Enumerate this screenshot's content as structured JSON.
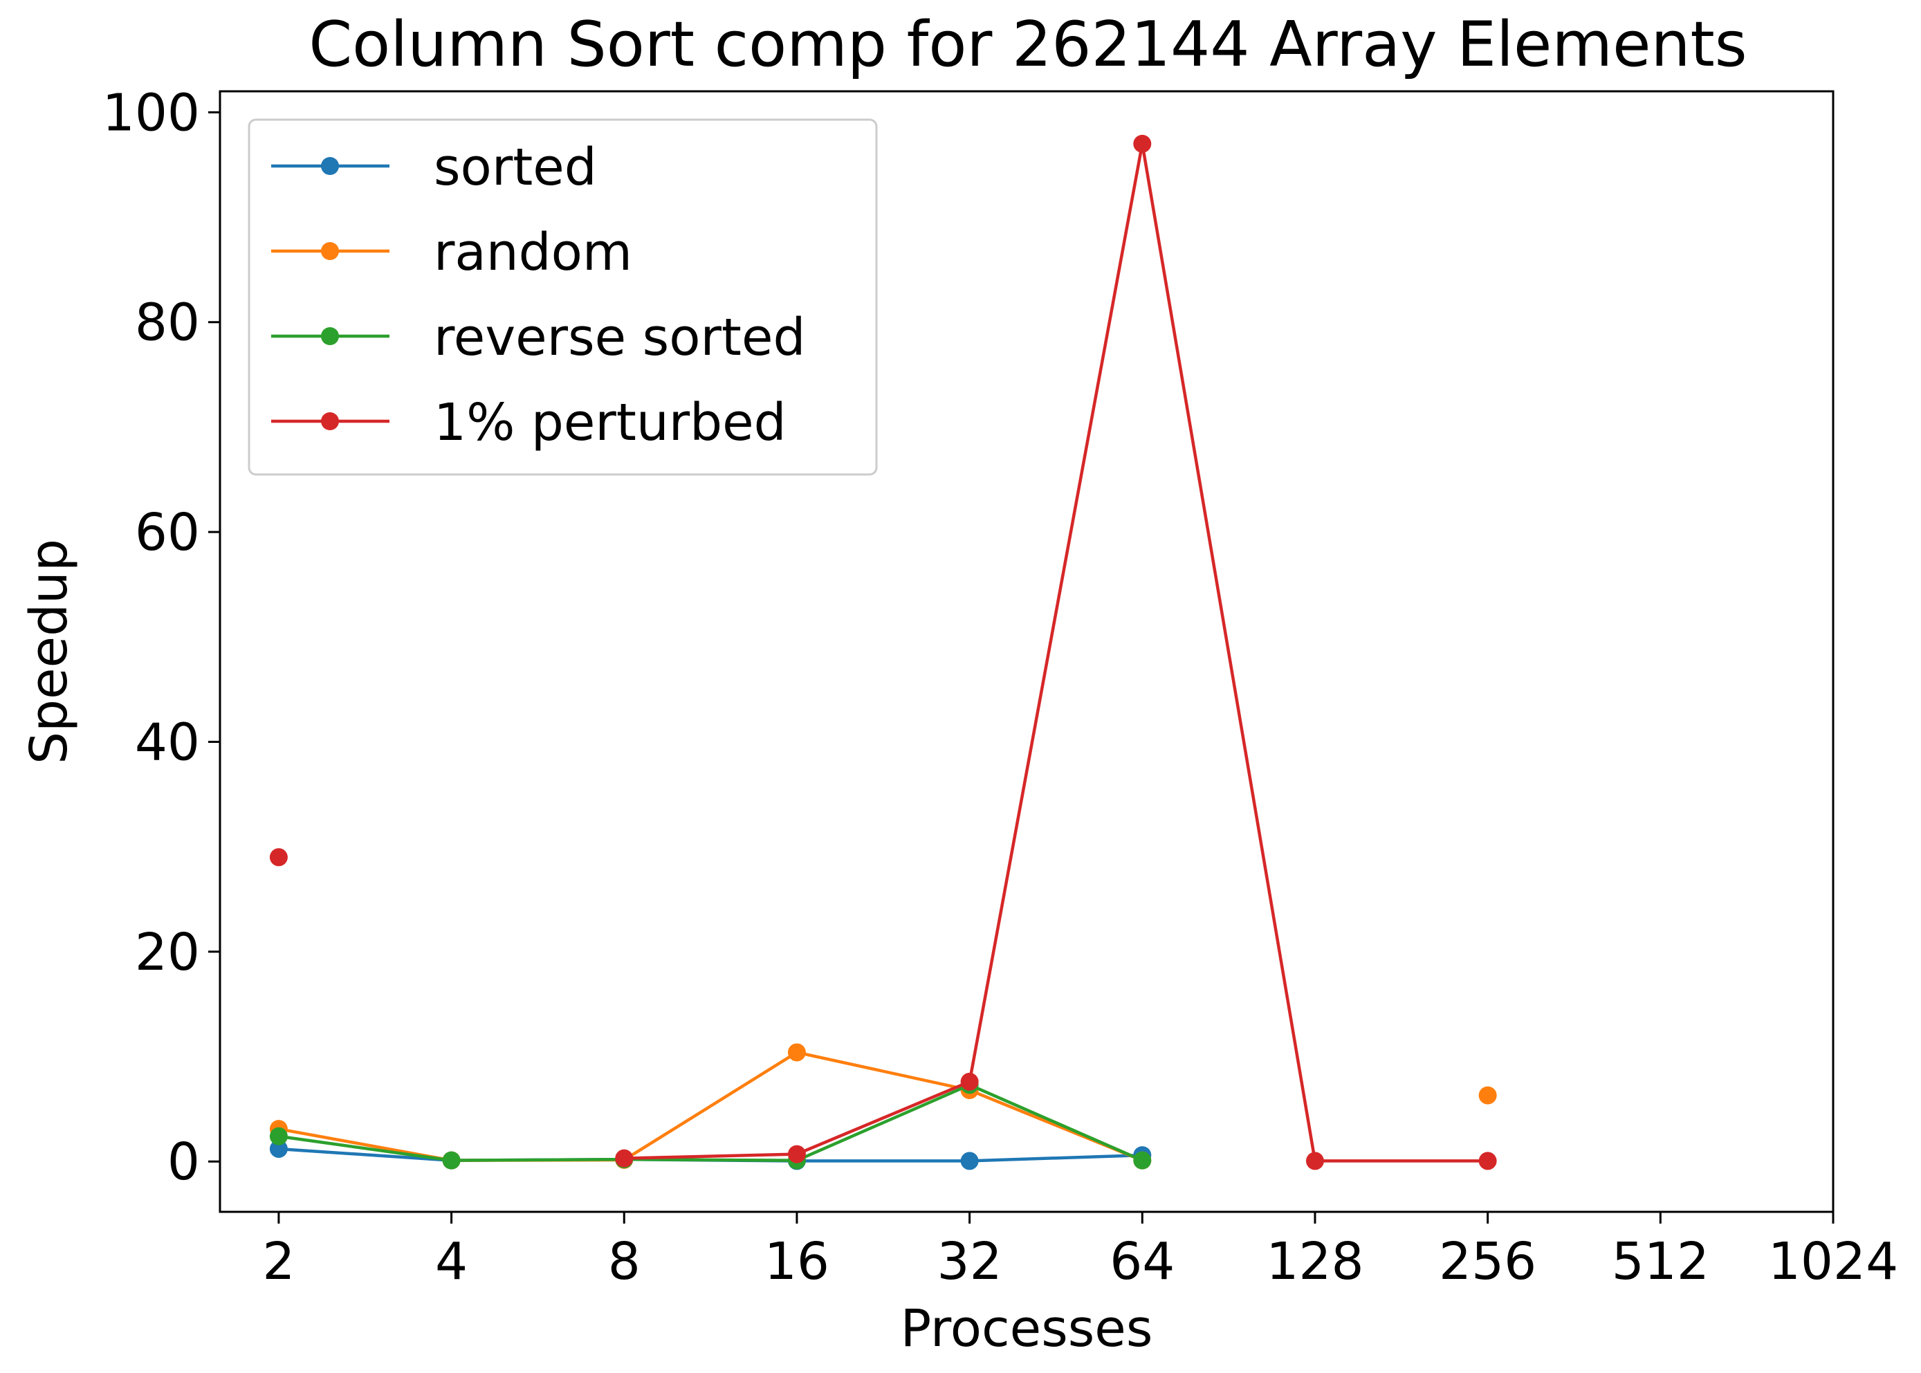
{
  "chart_data": {
    "type": "line",
    "title": "Column Sort comp for 262144 Array Elements",
    "xlabel": "Processes",
    "ylabel": "Speedup",
    "x_scale": "log2",
    "x": [
      2,
      4,
      8,
      16,
      32,
      64,
      128,
      256,
      512,
      1024
    ],
    "x_tick_labels": [
      "2",
      "4",
      "8",
      "16",
      "32",
      "64",
      "128",
      "256",
      "512",
      "1024"
    ],
    "xlim": [
      1.58,
      1024
    ],
    "ylim": [
      -4.8,
      102
    ],
    "y_ticks": [
      0,
      20,
      40,
      60,
      80,
      100
    ],
    "y_tick_labels": [
      "0",
      "20",
      "40",
      "60",
      "80",
      "100"
    ],
    "grid": false,
    "legend_position": "top-left",
    "series": [
      {
        "name": "sorted",
        "color": "#1f77b4",
        "values": [
          1.2,
          0.1,
          0.2,
          0.05,
          0.05,
          0.6,
          null,
          null,
          null,
          null
        ]
      },
      {
        "name": "random",
        "color": "#ff7f0e",
        "values": [
          3.1,
          0.1,
          0.15,
          10.4,
          6.8,
          0.1,
          null,
          6.3,
          null,
          null
        ]
      },
      {
        "name": "reverse sorted",
        "color": "#2ca02c",
        "values": [
          2.4,
          0.1,
          0.2,
          0.1,
          7.3,
          0.1,
          null,
          null,
          null,
          null
        ]
      },
      {
        "name": "1% perturbed",
        "color": "#d62728",
        "values": [
          29.0,
          null,
          0.3,
          0.7,
          7.6,
          97.0,
          0.05,
          0.05,
          null,
          null
        ]
      }
    ]
  }
}
